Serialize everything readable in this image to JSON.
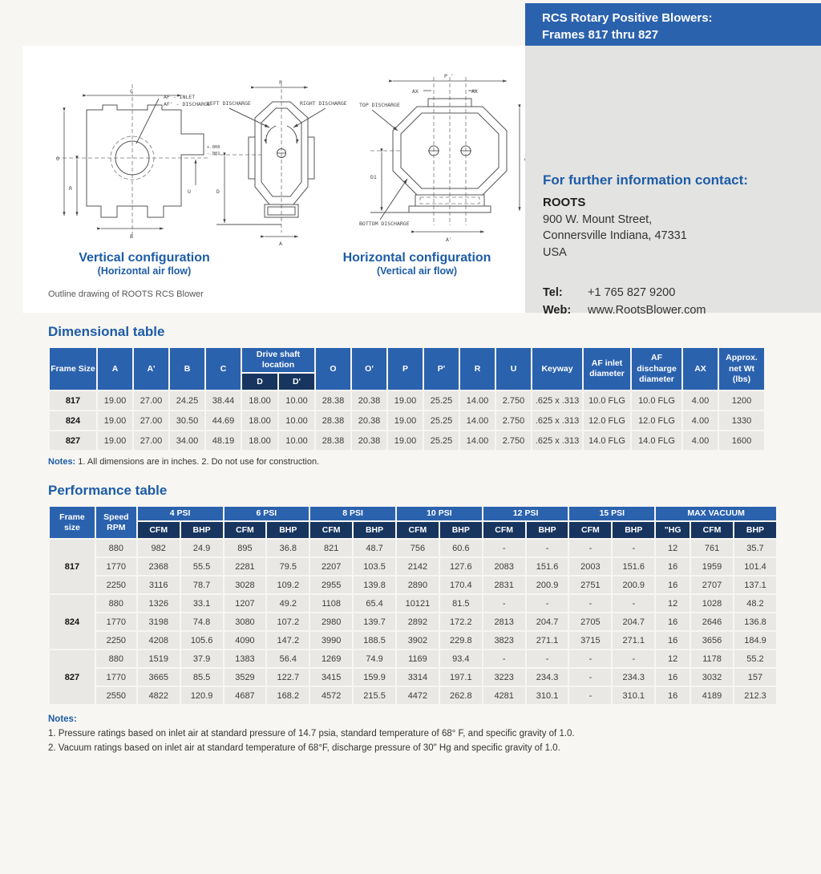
{
  "colors": {
    "brand_blue": "#2b62ae",
    "subheader_navy": "#17355f",
    "heading_text": "#1d5ca7",
    "row_gray": "#e9e8e5",
    "sidebar_gray": "#e3e3e2"
  },
  "header": {
    "line1": "RCS Rotary Positive Blowers:",
    "line2": "Frames 817 thru 827"
  },
  "contact": {
    "heading": "For further information contact:",
    "company": "ROOTS",
    "address": [
      "900 W. Mount Street,",
      "Connersville Indiana, 47331",
      "USA"
    ],
    "tel_label": "Tel:",
    "tel_value": "+1 765 827 9200",
    "web_label": "Web:",
    "web_value": "www.RootsBlower.com"
  },
  "drawings": {
    "note": "Outline drawing of ROOTS RCS Blower",
    "vertical": {
      "title": "Vertical configuration",
      "subtitle": "(Horizontal air flow)",
      "labels": {
        "inlet": "AF - INLET",
        "discharge": "AF' - DISCHARGE",
        "c": "C",
        "o": "O",
        "r": "R",
        "b": "B",
        "u": "U",
        "tol_plus": "+.000",
        "tol_minus": "-.001"
      }
    },
    "mid": {
      "labels": {
        "p": "P",
        "left_discharge": "LEFT DISCHARGE",
        "right_discharge": "RIGHT DISCHARGE",
        "d": "D",
        "a": "A"
      }
    },
    "horizontal": {
      "title": "Horizontal configuration",
      "subtitle": "(Vertical air flow)"
    },
    "right": {
      "labels": {
        "p_prime": "P '",
        "ax": "AX",
        "top_discharge": "TOP DISCHARGE",
        "o_prime": "O'",
        "d1": "D1",
        "bottom_discharge": "BOTTOM DISCHARGE",
        "a_prime": "A'"
      }
    }
  },
  "dimensional_table": {
    "title": "Dimensional table",
    "head": {
      "frame": "Frame Size",
      "a": "A",
      "a_prime": "A'",
      "b": "B",
      "c": "C",
      "drive_shaft": "Drive shaft location",
      "d": "D",
      "d_prime": "D'",
      "o": "O",
      "o_prime": "O'",
      "p": "P",
      "p_prime": "P'",
      "r": "R",
      "u": "U",
      "keyway": "Keyway",
      "af_inlet": "AF inlet diameter",
      "af_discharge": "AF discharge diameter",
      "ax": "AX",
      "net_wt": "Approx. net Wt (lbs)"
    },
    "rows": [
      {
        "frame": "817",
        "values": [
          "19.00",
          "27.00",
          "24.25",
          "38.44",
          "18.00",
          "10.00",
          "28.38",
          "20.38",
          "19.00",
          "25.25",
          "14.00",
          "2.750",
          ".625 x .313",
          "10.0 FLG",
          "10.0 FLG",
          "4.00",
          "1200"
        ]
      },
      {
        "frame": "824",
        "values": [
          "19.00",
          "27.00",
          "30.50",
          "44.69",
          "18.00",
          "10.00",
          "28.38",
          "20.38",
          "19.00",
          "25.25",
          "14.00",
          "2.750",
          ".625 x .313",
          "12.0 FLG",
          "12.0 FLG",
          "4.00",
          "1330"
        ]
      },
      {
        "frame": "827",
        "values": [
          "19.00",
          "27.00",
          "34.00",
          "48.19",
          "18.00",
          "10.00",
          "28.38",
          "20.38",
          "19.00",
          "25.25",
          "14.00",
          "2.750",
          ".625 x .313",
          "14.0 FLG",
          "14.0 FLG",
          "4.00",
          "1600"
        ]
      }
    ],
    "notes_label": "Notes:",
    "notes_text": "1. All dimensions are in inches. 2. Do not use for construction."
  },
  "performance_table": {
    "title": "Performance table",
    "head": {
      "frame": "Frame size",
      "speed": "Speed RPM",
      "groups": [
        "4 PSI",
        "6 PSI",
        "8 PSI",
        "10 PSI",
        "12 PSI",
        "15 PSI"
      ],
      "max_vacuum": "MAX VACUUM",
      "cfm": "CFM",
      "bhp": "BHP",
      "hg": "\"HG"
    },
    "groups": [
      {
        "frame": "817",
        "rows": [
          {
            "speed": "880",
            "values": [
              "982",
              "24.9",
              "895",
              "36.8",
              "821",
              "48.7",
              "756",
              "60.6",
              "-",
              "-",
              "-",
              "-",
              "12",
              "761",
              "35.7"
            ]
          },
          {
            "speed": "1770",
            "values": [
              "2368",
              "55.5",
              "2281",
              "79.5",
              "2207",
              "103.5",
              "2142",
              "127.6",
              "2083",
              "151.6",
              "2003",
              "151.6",
              "16",
              "1959",
              "101.4"
            ]
          },
          {
            "speed": "2250",
            "values": [
              "3116",
              "78.7",
              "3028",
              "109.2",
              "2955",
              "139.8",
              "2890",
              "170.4",
              "2831",
              "200.9",
              "2751",
              "200.9",
              "16",
              "2707",
              "137.1"
            ]
          }
        ]
      },
      {
        "frame": "824",
        "rows": [
          {
            "speed": "880",
            "values": [
              "1326",
              "33.1",
              "1207",
              "49.2",
              "1108",
              "65.4",
              "10121",
              "81.5",
              "-",
              "-",
              "-",
              "-",
              "12",
              "1028",
              "48.2"
            ]
          },
          {
            "speed": "1770",
            "values": [
              "3198",
              "74.8",
              "3080",
              "107.2",
              "2980",
              "139.7",
              "2892",
              "172.2",
              "2813",
              "204.7",
              "2705",
              "204.7",
              "16",
              "2646",
              "136.8"
            ]
          },
          {
            "speed": "2250",
            "values": [
              "4208",
              "105.6",
              "4090",
              "147.2",
              "3990",
              "188.5",
              "3902",
              "229.8",
              "3823",
              "271.1",
              "3715",
              "271.1",
              "16",
              "3656",
              "184.9"
            ]
          }
        ]
      },
      {
        "frame": "827",
        "rows": [
          {
            "speed": "880",
            "values": [
              "1519",
              "37.9",
              "1383",
              "56.4",
              "1269",
              "74.9",
              "1169",
              "93.4",
              "-",
              "-",
              "-",
              "-",
              "12",
              "1178",
              "55.2"
            ]
          },
          {
            "speed": "1770",
            "values": [
              "3665",
              "85.5",
              "3529",
              "122.7",
              "3415",
              "159.9",
              "3314",
              "197.1",
              "3223",
              "234.3",
              "-",
              "234.3",
              "16",
              "3032",
              "157"
            ]
          },
          {
            "speed": "2550",
            "values": [
              "4822",
              "120.9",
              "4687",
              "168.2",
              "4572",
              "215.5",
              "4472",
              "262.8",
              "4281",
              "310.1",
              "-",
              "310.1",
              "16",
              "4189",
              "212.3"
            ]
          }
        ]
      }
    ],
    "notes_label": "Notes:",
    "notes": [
      "1.  Pressure ratings based on inlet air at standard pressure of 14.7 psia, standard temperature of 68° F, and specific gravity of 1.0.",
      "2.  Vacuum ratings based on inlet air at standard temperature of 68°F, discharge pressure of 30\" Hg and specific gravity of 1.0."
    ]
  }
}
